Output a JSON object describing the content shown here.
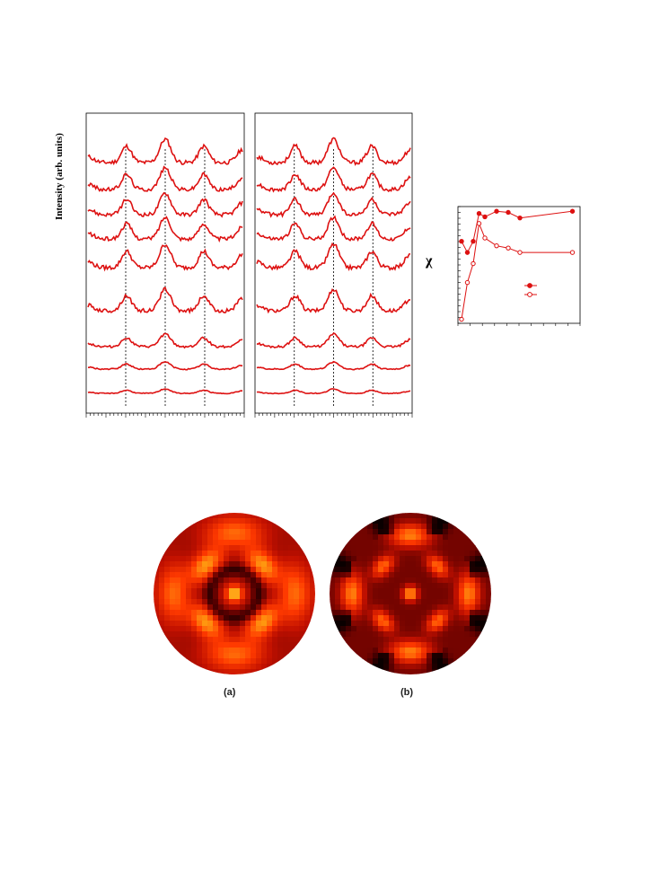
{
  "figure_top": {
    "ylabel": "Intensity (arb. units)",
    "chi_symbol": "χ",
    "panels": [
      {
        "n_curves": 9,
        "line_color": "#dd1111"
      },
      {
        "n_curves": 9,
        "line_color": "#dd1111"
      }
    ]
  },
  "chart_data": {
    "type": "line",
    "series": [
      {
        "marker": "filled-circle",
        "x": [
          0,
          1,
          2,
          3,
          4,
          6,
          8,
          10,
          19
        ],
        "y": [
          0.72,
          0.62,
          0.72,
          0.97,
          0.94,
          0.99,
          0.98,
          0.93,
          0.99
        ]
      },
      {
        "marker": "open-circle",
        "x": [
          0,
          1,
          2,
          3,
          4,
          6,
          8,
          10,
          19
        ],
        "y": [
          0.02,
          0.35,
          0.52,
          0.88,
          0.75,
          0.68,
          0.66,
          0.62,
          0.62
        ]
      }
    ],
    "grid": false
  },
  "figure_bottom": {
    "labels": [
      "(a)",
      "(b)"
    ],
    "colormap": [
      "#0a0000",
      "#5a0000",
      "#c01000",
      "#ff3a00",
      "#ff9a10",
      "#ffe040"
    ]
  }
}
